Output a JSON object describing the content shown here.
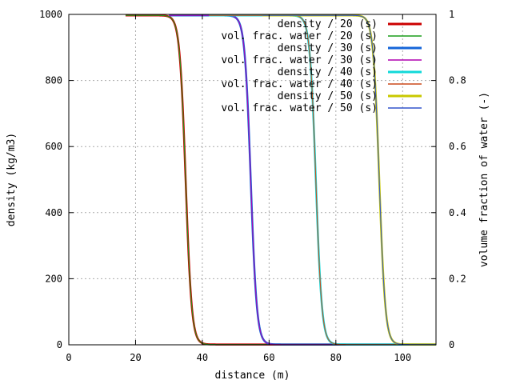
{
  "chart_data": {
    "type": "line",
    "title": "",
    "xlabel": "distance (m)",
    "ylabel": "density (kg/m3)",
    "y2label": "volume fraction of water (-)",
    "xlim": [
      0,
      110
    ],
    "ylim": [
      0,
      1000
    ],
    "y2lim": [
      0,
      1
    ],
    "xticks": [
      "0",
      "20",
      "40",
      "60",
      "80",
      "100"
    ],
    "yticks": [
      "0",
      "200",
      "400",
      "600",
      "800",
      "1000"
    ],
    "y2ticks": [
      "0",
      "0.2",
      "0.4",
      "0.6",
      "0.8",
      "1"
    ],
    "grid": true,
    "legend_position": "top-right",
    "front_shape": {
      "top_value": 997,
      "bottom_value": 1,
      "width_m": 4
    },
    "series": [
      {
        "name": "density / 20 (s)",
        "axis": "y1",
        "color": "#cc0000",
        "width": 2.5,
        "front_x": 35.0,
        "start_x": 17,
        "end_x": 110
      },
      {
        "name": "vol. frac. water / 20 (s)",
        "axis": "y2",
        "color": "#1a9e1a",
        "width": 1,
        "front_x": 35.0,
        "start_x": 17,
        "end_x": 110
      },
      {
        "name": "density / 30 (s)",
        "axis": "y1",
        "color": "#1565d8",
        "width": 2.5,
        "front_x": 54.5,
        "start_x": 30,
        "end_x": 110
      },
      {
        "name": "vol. frac. water / 30 (s)",
        "axis": "y2",
        "color": "#b000b0",
        "width": 1,
        "front_x": 54.5,
        "start_x": 30,
        "end_x": 110
      },
      {
        "name": "density / 40 (s)",
        "axis": "y1",
        "color": "#12d8d8",
        "width": 2.5,
        "front_x": 74.0,
        "start_x": 42,
        "end_x": 110
      },
      {
        "name": "vol. frac. water / 40 (s)",
        "axis": "y2",
        "color": "#cc4a1a",
        "width": 1,
        "front_x": 74.0,
        "start_x": 42,
        "end_x": 110
      },
      {
        "name": "density / 50 (s)",
        "axis": "y1",
        "color": "#c8c800",
        "width": 2.5,
        "front_x": 93.0,
        "start_x": 58,
        "end_x": 110
      },
      {
        "name": "vol. frac. water / 50 (s)",
        "axis": "y2",
        "color": "#3355cc",
        "width": 1,
        "front_x": 93.0,
        "start_x": 58,
        "end_x": 110
      }
    ]
  }
}
